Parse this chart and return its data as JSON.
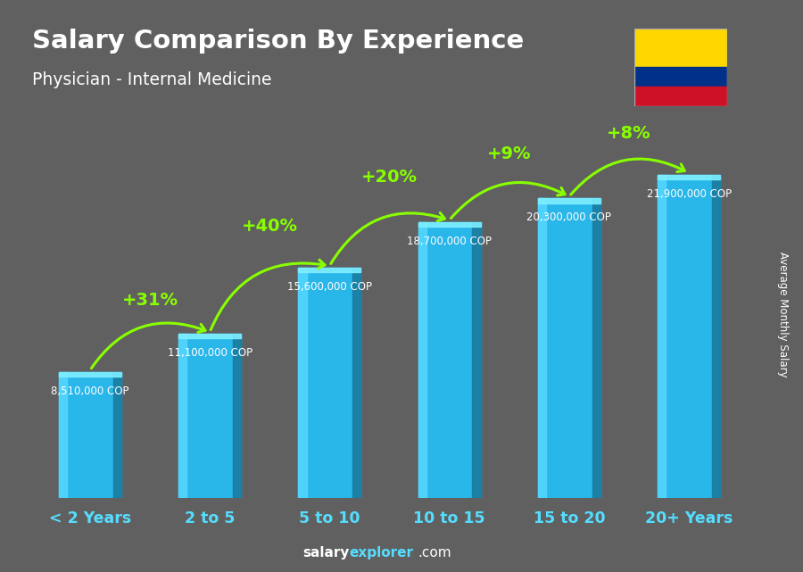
{
  "title": "Salary Comparison By Experience",
  "subtitle": "Physician - Internal Medicine",
  "ylabel": "Average Monthly Salary",
  "categories": [
    "< 2 Years",
    "2 to 5",
    "5 to 10",
    "10 to 15",
    "15 to 20",
    "20+ Years"
  ],
  "values": [
    8510000,
    11100000,
    15600000,
    18700000,
    20300000,
    21900000
  ],
  "value_labels": [
    "8,510,000 COP",
    "11,100,000 COP",
    "15,600,000 COP",
    "18,700,000 COP",
    "20,300,000 COP",
    "21,900,000 COP"
  ],
  "pct_changes": [
    "+31%",
    "+40%",
    "+20%",
    "+9%",
    "+8%"
  ],
  "bar_color_main": "#29b6e8",
  "bar_color_light": "#55d8ff",
  "bar_color_dark": "#1a7ca0",
  "bar_color_top": "#7eeeff",
  "background_color": "#606060",
  "title_color": "#ffffff",
  "subtitle_color": "#ffffff",
  "value_label_color": "#ffffff",
  "pct_color": "#88ff00",
  "arrow_color": "#88ff00",
  "xtick_color": "#55ddff",
  "footer_salary_color": "#ffffff",
  "footer_explorer_color": "#55ddff",
  "footer_com_color": "#ffffff",
  "ylabel_color": "#ffffff",
  "ylim_max": 26000000,
  "bar_width": 0.52,
  "flag_yellow": "#FFD700",
  "flag_blue": "#003087",
  "flag_red": "#CE1126"
}
